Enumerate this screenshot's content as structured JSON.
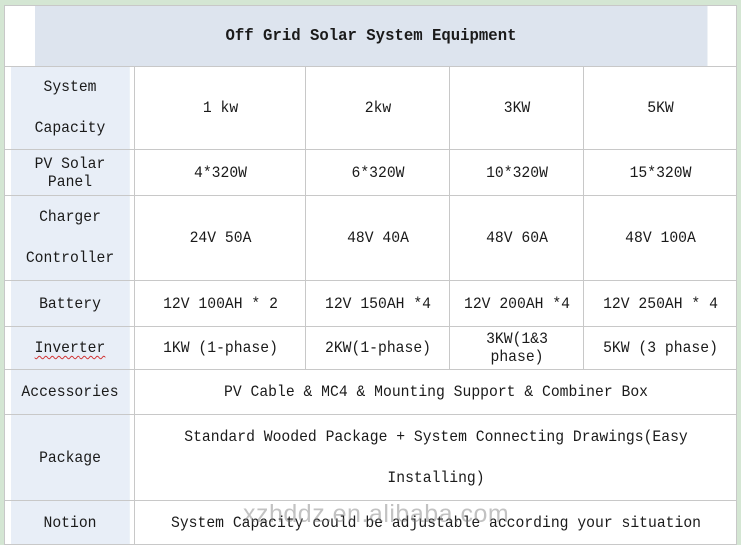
{
  "title": "Off Grid Solar System Equipment",
  "rows": {
    "capacity": {
      "label_line1": "System",
      "label_line2": "Capacity",
      "values": [
        "1 kw",
        "2kw",
        "3KW",
        "5KW"
      ]
    },
    "pv": {
      "label": "PV Solar Panel",
      "values": [
        "4*320W",
        "6*320W",
        "10*320W",
        "15*320W"
      ]
    },
    "charger": {
      "label_line1": "Charger",
      "label_line2": "Controller",
      "values": [
        "24V 50A",
        "48V 40A",
        "48V 60A",
        "48V 100A"
      ]
    },
    "battery": {
      "label": "Battery",
      "values": [
        "12V 100AH * 2",
        "12V 150AH *4",
        "12V 200AH *4",
        "12V 250AH * 4"
      ]
    },
    "inverter": {
      "label": "Inverter",
      "values": [
        "1KW (1-phase)",
        "2KW(1-phase)",
        "3KW(1&3 phase)",
        "5KW (3 phase)"
      ]
    },
    "accessories": {
      "label": "Accessories",
      "value": "PV Cable & MC4 & Mounting Support & Combiner Box"
    },
    "package": {
      "label": "Package",
      "value_line1": "Standard Wooded Package + System Connecting Drawings(Easy",
      "value_line2": "Installing)"
    },
    "notion": {
      "label": "Notion",
      "value": "System Capacity could be adjustable according your situation"
    }
  },
  "watermark": "xzhddz.en.alibaba.com"
}
